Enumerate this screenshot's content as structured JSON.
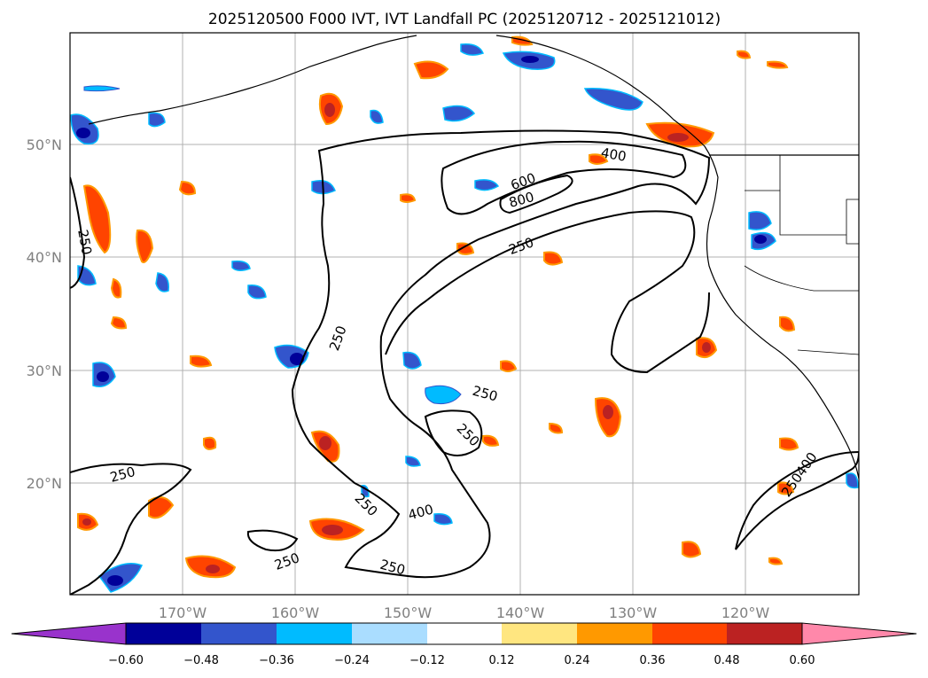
{
  "title": "2025120500 F000 IVT, IVT Landfall PC (2025120712 - 2025121012)",
  "lat_labels": [
    "50°N",
    "40°N",
    "30°N",
    "20°N"
  ],
  "lon_labels": [
    "170°W",
    "160°W",
    "150°W",
    "140°W",
    "130°W",
    "120°W"
  ],
  "contour_labels": [
    "250",
    "400",
    "600",
    "800",
    "250",
    "250",
    "250",
    "250",
    "250",
    "250",
    "400",
    "250",
    "250",
    "250400"
  ],
  "colorbar": {
    "colors": [
      "#9933cc",
      "#000099",
      "#3355cc",
      "#00bbff",
      "#aaddff",
      "#ffffff",
      "#ffe680",
      "#ff9900",
      "#ff4400",
      "#bb2222",
      "#ff88aa"
    ],
    "tick_labels": [
      "−0.60",
      "−0.48",
      "−0.36",
      "−0.24",
      "−0.12",
      "0.12",
      "0.24",
      "0.36",
      "0.48",
      "0.60"
    ]
  }
}
